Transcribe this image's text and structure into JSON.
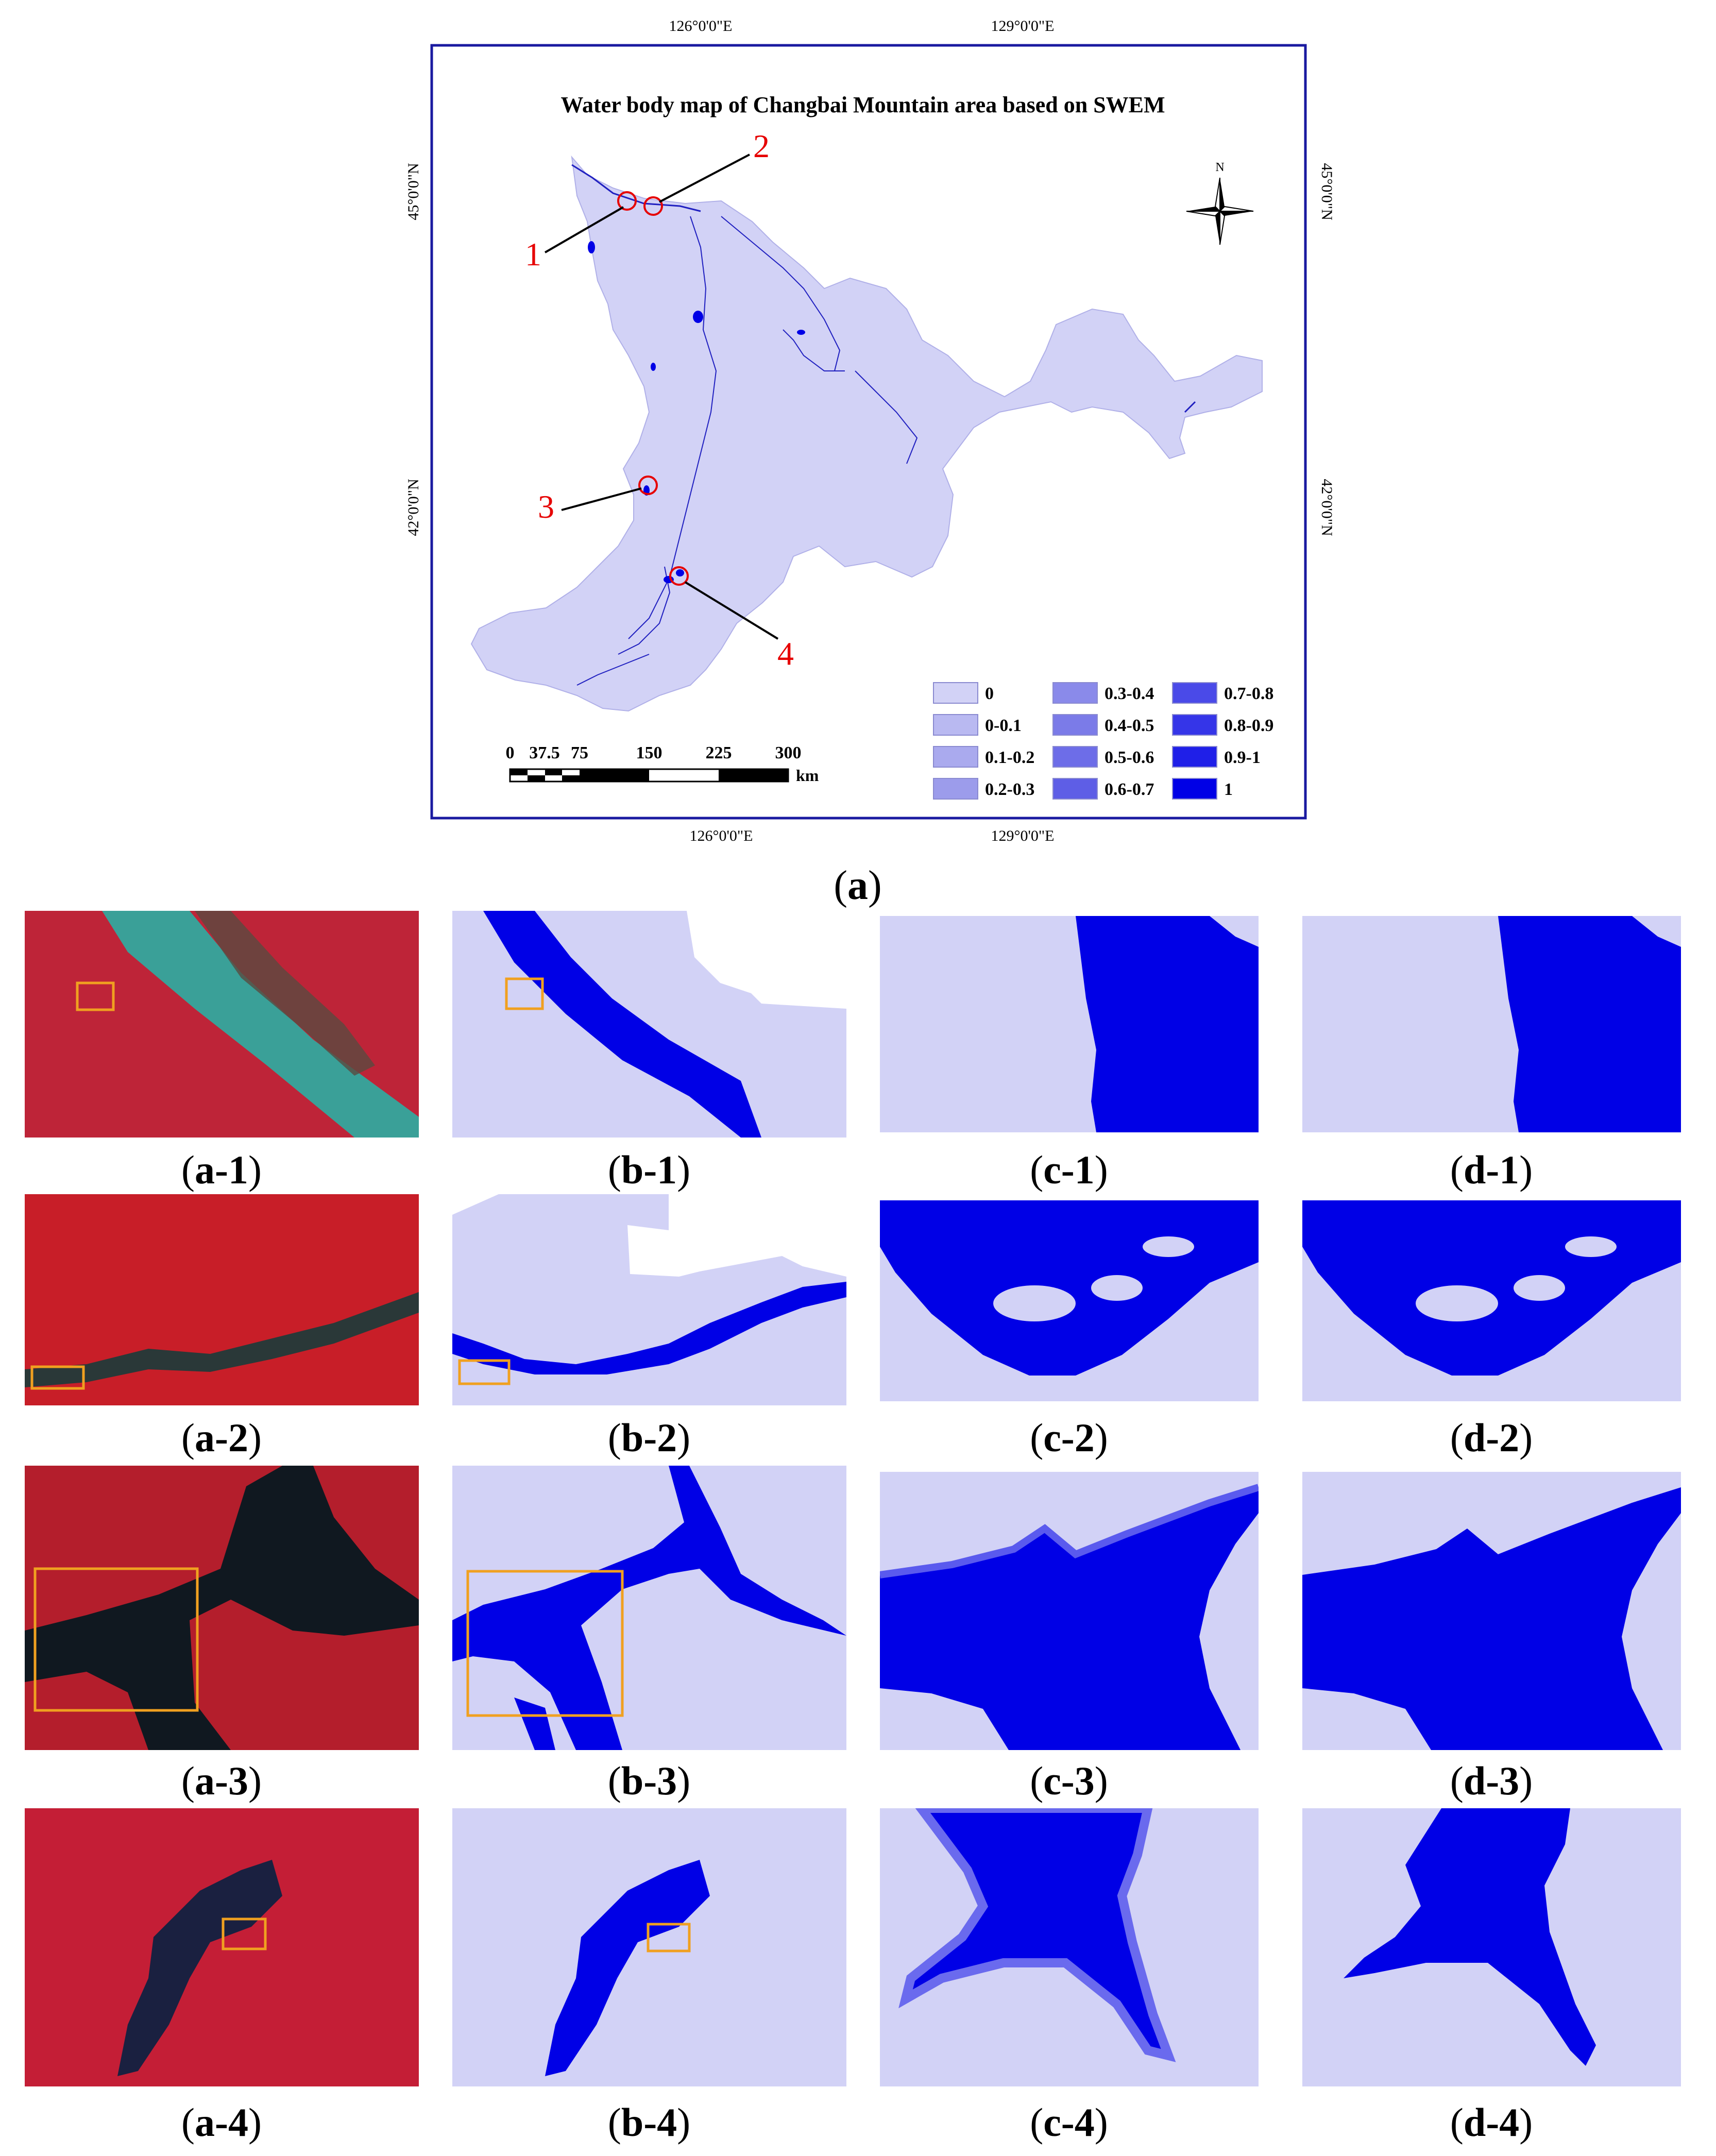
{
  "map": {
    "title": "Water body map of Changbai Mountain area based on SWEM",
    "lon_labels": [
      "126°0'0\"E",
      "129°0'0\"E"
    ],
    "lat_labels": [
      "45°0'0\"N",
      "42°0'0\"N"
    ],
    "north_label": "N",
    "markers": [
      "1",
      "2",
      "3",
      "4"
    ],
    "scale": {
      "ticks": [
        "0",
        "37.5",
        "75",
        "150",
        "225",
        "300"
      ],
      "unit": "km"
    },
    "legend": [
      {
        "label": "0",
        "color": "#d2d2f6"
      },
      {
        "label": "0-0.1",
        "color": "#b9b9f1"
      },
      {
        "label": "0.1-0.2",
        "color": "#aaaaee"
      },
      {
        "label": "0.2-0.3",
        "color": "#9c9ceb"
      },
      {
        "label": "0.3-0.4",
        "color": "#8a8aea"
      },
      {
        "label": "0.4-0.5",
        "color": "#7b7be8"
      },
      {
        "label": "0.5-0.6",
        "color": "#6d6de8"
      },
      {
        "label": "0.6-0.7",
        "color": "#5e5ee6"
      },
      {
        "label": "0.7-0.8",
        "color": "#4a4ae8"
      },
      {
        "label": "0.8-0.9",
        "color": "#3535e8"
      },
      {
        "label": "0.9-1",
        "color": "#1f1fe8"
      },
      {
        "label": "1",
        "color": "#0000e6"
      }
    ],
    "caption": "a"
  },
  "panels": {
    "rows": [
      [
        "a-1",
        "b-1",
        "c-1",
        "d-1"
      ],
      [
        "a-2",
        "b-2",
        "c-2",
        "d-2"
      ],
      [
        "a-3",
        "b-3",
        "c-3",
        "d-3"
      ],
      [
        "a-4",
        "b-4",
        "c-4",
        "d-4"
      ]
    ]
  },
  "colors": {
    "land": "#d2d2f6",
    "water": "#0000e6",
    "marker": "#e60000",
    "frame": "#1a1aa0",
    "highlight_box": "#f0a020"
  }
}
